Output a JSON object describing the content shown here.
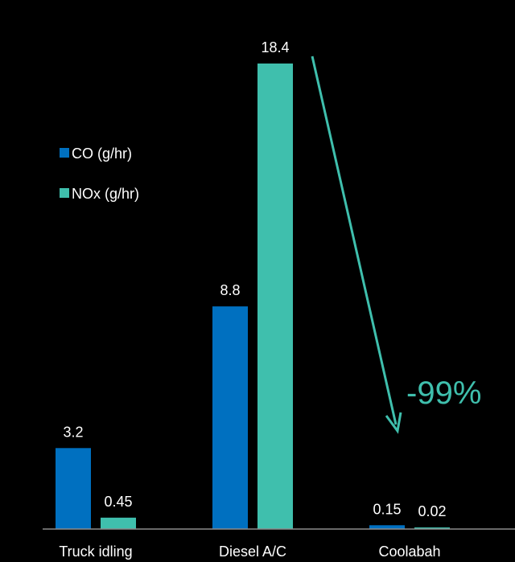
{
  "chart_data": {
    "type": "bar",
    "categories": [
      "Truck idling",
      "Diesel A/C",
      "Coolabah"
    ],
    "series": [
      {
        "name": "CO (g/hr)",
        "values": [
          3.2,
          8.8,
          0.15
        ],
        "labels": [
          "3.2",
          "8.8",
          "0.15"
        ],
        "color": "#0070c0"
      },
      {
        "name": "NOx (g/hr)",
        "values": [
          0.45,
          18.4,
          0.02
        ],
        "labels": [
          "0.45",
          "18.4",
          "0.02"
        ],
        "color": "#3fbfad"
      }
    ],
    "title": "",
    "xlabel": "",
    "ylabel": "",
    "ylim": [
      0,
      18.4
    ],
    "grid": false,
    "legend": "upper-left",
    "annotation": {
      "text": "-99%",
      "color": "#3fbfad"
    },
    "background": "#000000"
  }
}
